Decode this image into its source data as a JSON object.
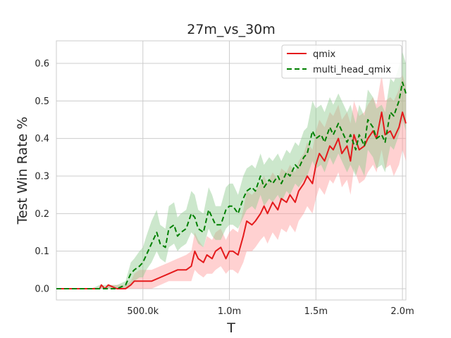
{
  "chart_data": {
    "type": "line",
    "title": "27m_vs_30m",
    "xlabel": "T",
    "ylabel": "Test Win Rate %",
    "xlim": [
      0,
      2020000
    ],
    "ylim": [
      -0.03,
      0.66
    ],
    "x_ticks": [
      {
        "value": 500000,
        "label": "500.0k"
      },
      {
        "value": 1000000,
        "label": "1.0m"
      },
      {
        "value": 1500000,
        "label": "1.5m"
      },
      {
        "value": 2000000,
        "label": "2.0m"
      }
    ],
    "y_ticks": [
      {
        "value": 0.0,
        "label": "0.0"
      },
      {
        "value": 0.1,
        "label": "0.1"
      },
      {
        "value": 0.2,
        "label": "0.2"
      },
      {
        "value": 0.3,
        "label": "0.3"
      },
      {
        "value": 0.4,
        "label": "0.4"
      },
      {
        "value": 0.5,
        "label": "0.5"
      },
      {
        "value": 0.6,
        "label": "0.6"
      }
    ],
    "grid": true,
    "legend_position": "top-right",
    "series": [
      {
        "name": "qmix",
        "color": "#e41a1c",
        "band_color": "#ff9999",
        "dash": "solid",
        "x": [
          0,
          100000,
          200000,
          250000,
          260000,
          280000,
          300000,
          350000,
          400000,
          430000,
          450000,
          480000,
          500000,
          550000,
          600000,
          650000,
          700000,
          750000,
          780000,
          800000,
          820000,
          850000,
          870000,
          900000,
          920000,
          950000,
          980000,
          1000000,
          1020000,
          1050000,
          1080000,
          1100000,
          1130000,
          1150000,
          1180000,
          1200000,
          1220000,
          1250000,
          1280000,
          1300000,
          1330000,
          1350000,
          1380000,
          1400000,
          1430000,
          1450000,
          1480000,
          1500000,
          1520000,
          1550000,
          1580000,
          1600000,
          1630000,
          1650000,
          1680000,
          1700000,
          1720000,
          1750000,
          1780000,
          1800000,
          1830000,
          1850000,
          1880000,
          1900000,
          1930000,
          1950000,
          1980000,
          2000000,
          2020000
        ],
        "y": [
          0.0,
          0.0,
          0.0,
          0.0,
          0.01,
          0.0,
          0.01,
          0.0,
          0.0,
          0.01,
          0.02,
          0.02,
          0.02,
          0.02,
          0.03,
          0.04,
          0.05,
          0.05,
          0.06,
          0.1,
          0.08,
          0.07,
          0.09,
          0.08,
          0.1,
          0.11,
          0.08,
          0.1,
          0.1,
          0.09,
          0.14,
          0.18,
          0.17,
          0.18,
          0.2,
          0.22,
          0.2,
          0.23,
          0.21,
          0.24,
          0.23,
          0.25,
          0.23,
          0.26,
          0.28,
          0.3,
          0.28,
          0.33,
          0.36,
          0.34,
          0.38,
          0.37,
          0.4,
          0.36,
          0.38,
          0.34,
          0.41,
          0.37,
          0.38,
          0.4,
          0.42,
          0.4,
          0.47,
          0.41,
          0.42,
          0.4,
          0.43,
          0.47,
          0.44
        ],
        "lower": [
          0.0,
          0.0,
          0.0,
          0.0,
          0.0,
          0.0,
          0.0,
          0.0,
          0.0,
          0.0,
          0.0,
          0.0,
          0.0,
          0.0,
          0.01,
          0.02,
          0.02,
          0.02,
          0.02,
          0.05,
          0.04,
          0.03,
          0.04,
          0.04,
          0.05,
          0.06,
          0.04,
          0.05,
          0.05,
          0.04,
          0.07,
          0.1,
          0.1,
          0.11,
          0.13,
          0.14,
          0.12,
          0.15,
          0.13,
          0.16,
          0.15,
          0.17,
          0.15,
          0.18,
          0.2,
          0.22,
          0.2,
          0.24,
          0.27,
          0.25,
          0.29,
          0.28,
          0.31,
          0.27,
          0.29,
          0.25,
          0.32,
          0.28,
          0.29,
          0.31,
          0.33,
          0.31,
          0.37,
          0.32,
          0.33,
          0.3,
          0.33,
          0.37,
          0.34
        ],
        "upper": [
          0.0,
          0.0,
          0.0,
          0.0,
          0.01,
          0.0,
          0.01,
          0.01,
          0.01,
          0.02,
          0.04,
          0.05,
          0.05,
          0.05,
          0.06,
          0.07,
          0.08,
          0.09,
          0.1,
          0.15,
          0.13,
          0.11,
          0.14,
          0.13,
          0.15,
          0.16,
          0.13,
          0.15,
          0.16,
          0.15,
          0.21,
          0.26,
          0.25,
          0.26,
          0.28,
          0.3,
          0.28,
          0.31,
          0.29,
          0.32,
          0.31,
          0.33,
          0.31,
          0.34,
          0.36,
          0.39,
          0.37,
          0.42,
          0.45,
          0.43,
          0.47,
          0.46,
          0.49,
          0.45,
          0.47,
          0.44,
          0.5,
          0.46,
          0.47,
          0.49,
          0.51,
          0.49,
          0.57,
          0.5,
          0.51,
          0.5,
          0.53,
          0.57,
          0.54
        ]
      },
      {
        "name": "multi_head_qmix",
        "color": "#008000",
        "band_color": "#8fc98f",
        "dash": "dashed",
        "x": [
          0,
          100000,
          200000,
          250000,
          300000,
          350000,
          400000,
          430000,
          450000,
          480000,
          500000,
          520000,
          550000,
          580000,
          600000,
          630000,
          650000,
          680000,
          700000,
          720000,
          750000,
          780000,
          800000,
          820000,
          850000,
          880000,
          900000,
          920000,
          950000,
          980000,
          1000000,
          1020000,
          1050000,
          1080000,
          1100000,
          1130000,
          1150000,
          1180000,
          1200000,
          1230000,
          1250000,
          1280000,
          1300000,
          1330000,
          1350000,
          1380000,
          1400000,
          1430000,
          1450000,
          1480000,
          1500000,
          1530000,
          1550000,
          1580000,
          1600000,
          1630000,
          1650000,
          1680000,
          1700000,
          1730000,
          1750000,
          1780000,
          1800000,
          1830000,
          1850000,
          1880000,
          1900000,
          1930000,
          1950000,
          1980000,
          2000000,
          2020000
        ],
        "y": [
          0.0,
          0.0,
          0.0,
          0.0,
          0.0,
          0.0,
          0.01,
          0.04,
          0.05,
          0.06,
          0.07,
          0.09,
          0.12,
          0.15,
          0.12,
          0.11,
          0.16,
          0.17,
          0.14,
          0.15,
          0.16,
          0.2,
          0.19,
          0.16,
          0.15,
          0.21,
          0.19,
          0.17,
          0.17,
          0.21,
          0.22,
          0.22,
          0.2,
          0.24,
          0.26,
          0.27,
          0.26,
          0.3,
          0.27,
          0.29,
          0.28,
          0.3,
          0.28,
          0.31,
          0.3,
          0.33,
          0.32,
          0.35,
          0.36,
          0.42,
          0.4,
          0.41,
          0.39,
          0.43,
          0.41,
          0.44,
          0.42,
          0.39,
          0.41,
          0.37,
          0.41,
          0.38,
          0.45,
          0.43,
          0.4,
          0.41,
          0.39,
          0.47,
          0.46,
          0.5,
          0.55,
          0.52
        ],
        "lower": [
          0.0,
          0.0,
          0.0,
          0.0,
          0.0,
          0.0,
          0.0,
          0.01,
          0.02,
          0.03,
          0.03,
          0.05,
          0.07,
          0.1,
          0.08,
          0.07,
          0.11,
          0.12,
          0.1,
          0.11,
          0.12,
          0.15,
          0.14,
          0.12,
          0.11,
          0.16,
          0.14,
          0.13,
          0.13,
          0.16,
          0.17,
          0.17,
          0.16,
          0.19,
          0.21,
          0.22,
          0.21,
          0.25,
          0.22,
          0.24,
          0.23,
          0.25,
          0.23,
          0.26,
          0.25,
          0.28,
          0.27,
          0.29,
          0.3,
          0.34,
          0.32,
          0.33,
          0.31,
          0.35,
          0.33,
          0.36,
          0.34,
          0.31,
          0.33,
          0.3,
          0.33,
          0.3,
          0.37,
          0.35,
          0.32,
          0.33,
          0.31,
          0.38,
          0.37,
          0.41,
          0.45,
          0.42
        ],
        "upper": [
          0.0,
          0.0,
          0.0,
          0.01,
          0.01,
          0.01,
          0.02,
          0.07,
          0.08,
          0.1,
          0.11,
          0.14,
          0.18,
          0.21,
          0.17,
          0.16,
          0.22,
          0.23,
          0.19,
          0.2,
          0.21,
          0.26,
          0.25,
          0.21,
          0.2,
          0.27,
          0.25,
          0.22,
          0.22,
          0.27,
          0.28,
          0.28,
          0.25,
          0.3,
          0.32,
          0.33,
          0.32,
          0.36,
          0.33,
          0.35,
          0.34,
          0.36,
          0.34,
          0.37,
          0.36,
          0.39,
          0.38,
          0.42,
          0.43,
          0.5,
          0.48,
          0.49,
          0.47,
          0.51,
          0.49,
          0.52,
          0.5,
          0.47,
          0.49,
          0.44,
          0.49,
          0.46,
          0.53,
          0.51,
          0.48,
          0.49,
          0.47,
          0.56,
          0.55,
          0.59,
          0.63,
          0.6
        ]
      }
    ]
  }
}
